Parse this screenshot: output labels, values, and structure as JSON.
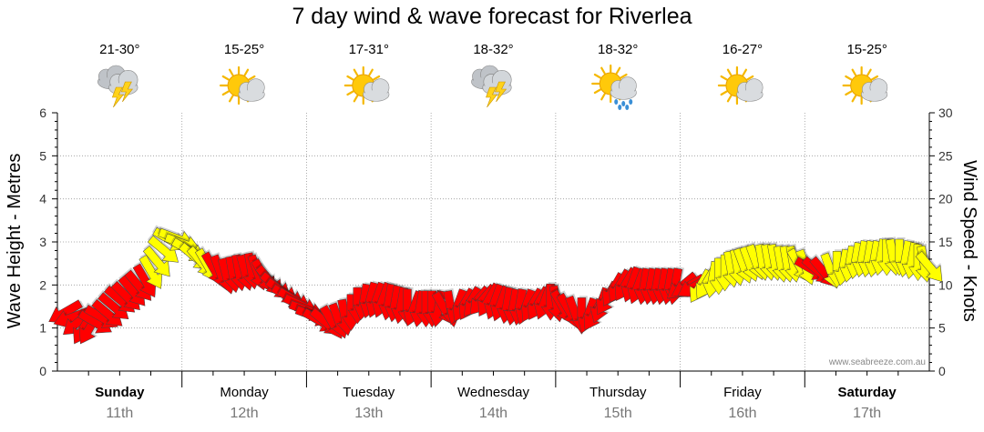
{
  "title": "7 day wind & wave forecast for Riverlea",
  "credit": "www.seabreeze.com.au",
  "colors": {
    "calm_arrow": "#ff0000",
    "strong_arrow": "#ffff00",
    "grid": "#999999",
    "axis": "#000000"
  },
  "days": [
    {
      "name": "Sunday",
      "date": "11th",
      "bold": true,
      "temp": "21-30°",
      "icon": "storm-cloud-icon"
    },
    {
      "name": "Monday",
      "date": "12th",
      "bold": false,
      "temp": "15-25°",
      "icon": "partly-cloudy-icon"
    },
    {
      "name": "Tuesday",
      "date": "13th",
      "bold": false,
      "temp": "17-31°",
      "icon": "partly-cloudy-icon"
    },
    {
      "name": "Wednesday",
      "date": "14th",
      "bold": false,
      "temp": "18-32°",
      "icon": "storm-cloud-icon"
    },
    {
      "name": "Thursday",
      "date": "15th",
      "bold": false,
      "temp": "18-32°",
      "icon": "sun-rain-icon"
    },
    {
      "name": "Friday",
      "date": "16th",
      "bold": false,
      "temp": "16-27°",
      "icon": "partly-cloudy-icon"
    },
    {
      "name": "Saturday",
      "date": "17th",
      "bold": true,
      "temp": "15-25°",
      "icon": "partly-cloudy-icon"
    }
  ],
  "chart_data": {
    "type": "line",
    "left_axis": {
      "label": "Wave Height - Metres",
      "range": [
        0,
        6
      ],
      "ticks": [
        "0",
        "1",
        "2",
        "3",
        "4",
        "5",
        "6"
      ]
    },
    "right_axis": {
      "label": "Wind Speed - Knots",
      "range": [
        0,
        30
      ],
      "ticks": [
        "0",
        "5",
        "10",
        "15",
        "20",
        "25",
        "30"
      ]
    },
    "categories": [
      "Sunday 11th",
      "Monday 12th",
      "Tuesday 13th",
      "Wednesday 14th",
      "Thursday 15th",
      "Friday 16th",
      "Saturday 17th"
    ],
    "grid": true,
    "series": [
      {
        "name": "Wind",
        "x_days": [
          0.0,
          0.05,
          0.1,
          0.15,
          0.2,
          0.25,
          0.3,
          0.35,
          0.4,
          0.45,
          0.5,
          0.55,
          0.6,
          0.65,
          0.7,
          0.75,
          0.8,
          0.85,
          0.9,
          0.95,
          1.0,
          1.05,
          1.1,
          1.15,
          1.2,
          1.25,
          1.3,
          1.35,
          1.4,
          1.45,
          1.5,
          1.55,
          1.6,
          1.65,
          1.7,
          1.75,
          1.8,
          1.85,
          1.9,
          1.95,
          2.0,
          2.05,
          2.1,
          2.15,
          2.2,
          2.25,
          2.3,
          2.35,
          2.4,
          2.45,
          2.5,
          2.55,
          2.6,
          2.65,
          2.7,
          2.75,
          2.8,
          2.85,
          2.9,
          2.95,
          3.0,
          3.05,
          3.1,
          3.15,
          3.2,
          3.25,
          3.3,
          3.35,
          3.4,
          3.45,
          3.5,
          3.55,
          3.6,
          3.65,
          3.7,
          3.75,
          3.8,
          3.85,
          3.9,
          3.95,
          4.0,
          4.05,
          4.1,
          4.15,
          4.2,
          4.25,
          4.3,
          4.35,
          4.4,
          4.45,
          4.5,
          4.55,
          4.6,
          4.65,
          4.7,
          4.75,
          4.8,
          4.85,
          4.9,
          4.95,
          5.0,
          5.05,
          5.1,
          5.15,
          5.2,
          5.25,
          5.3,
          5.35,
          5.4,
          5.45,
          5.5,
          5.55,
          5.6,
          5.65,
          5.7,
          5.75,
          5.8,
          5.85,
          5.9,
          5.95,
          6.0,
          6.05,
          6.1,
          6.15,
          6.2,
          6.25,
          6.3,
          6.35,
          6.4,
          6.45,
          6.5,
          6.55,
          6.6,
          6.65,
          6.7,
          6.75,
          6.8,
          6.85,
          6.9,
          6.95
        ],
        "knots": [
          6.8,
          6.2,
          5.6,
          5.0,
          5.0,
          5.6,
          6.2,
          6.6,
          7.4,
          8.2,
          8.6,
          9.2,
          9.8,
          10.4,
          11.4,
          12.6,
          14.0,
          15.2,
          15.4,
          14.8,
          14.0,
          13.2,
          12.6,
          12.2,
          11.8,
          11.4,
          11.0,
          11.2,
          11.4,
          11.4,
          11.6,
          11.4,
          11.0,
          10.4,
          9.8,
          9.2,
          8.6,
          8.2,
          7.6,
          7.0,
          6.4,
          5.8,
          5.6,
          5.6,
          5.8,
          6.2,
          6.8,
          7.6,
          8.0,
          8.2,
          8.2,
          8.2,
          8.0,
          7.8,
          7.6,
          7.4,
          7.2,
          7.2,
          7.2,
          7.2,
          7.2,
          7.2,
          7.2,
          7.4,
          7.6,
          7.8,
          8.0,
          8.2,
          8.2,
          8.0,
          7.8,
          7.6,
          7.4,
          7.4,
          7.4,
          7.6,
          7.8,
          8.0,
          8.0,
          7.8,
          7.4,
          7.0,
          6.6,
          6.4,
          6.4,
          6.6,
          7.6,
          8.4,
          9.4,
          9.8,
          10.0,
          10.0,
          9.8,
          9.8,
          9.8,
          9.8,
          9.8,
          9.8,
          9.8,
          9.8,
          9.8,
          9.8,
          9.8,
          10.2,
          10.6,
          11.0,
          11.4,
          11.8,
          12.0,
          12.2,
          12.4,
          12.6,
          12.6,
          12.6,
          12.6,
          12.4,
          12.4,
          12.4,
          12.2,
          12.0,
          11.8,
          11.6,
          11.4,
          11.6,
          11.8,
          12.0,
          12.4,
          12.8,
          13.0,
          13.0,
          13.0,
          13.2,
          13.2,
          13.2,
          13.2,
          13.0,
          12.8,
          12.6,
          12.4,
          12.0
        ],
        "direction_deg": [
          330,
          340,
          320,
          300,
          300,
          210,
          210,
          220,
          220,
          220,
          225,
          230,
          230,
          240,
          240,
          230,
          220,
          210,
          200,
          200,
          210,
          220,
          230,
          240,
          240,
          250,
          255,
          260,
          260,
          255,
          260,
          250,
          240,
          230,
          220,
          215,
          210,
          210,
          205,
          200,
          200,
          210,
          220,
          240,
          250,
          260,
          270,
          270,
          280,
          285,
          290,
          290,
          280,
          280,
          280,
          270,
          290,
          280,
          270,
          270,
          280,
          240,
          260,
          290,
          300,
          300,
          310,
          310,
          300,
          290,
          290,
          280,
          280,
          280,
          290,
          300,
          300,
          290,
          270,
          260,
          240,
          240,
          250,
          270,
          290,
          300,
          290,
          300,
          300,
          300,
          300,
          290,
          290,
          280,
          280,
          280,
          280,
          280,
          280,
          320,
          330,
          330,
          300,
          300,
          280,
          270,
          270,
          260,
          260,
          250,
          250,
          250,
          260,
          260,
          260,
          260,
          260,
          260,
          240,
          250,
          210,
          220,
          230,
          250,
          270,
          280,
          280,
          280,
          280,
          280,
          280,
          280,
          270,
          260,
          270,
          280,
          280,
          270,
          260,
          230
        ],
        "strong": [
          false,
          false,
          false,
          false,
          false,
          false,
          false,
          false,
          false,
          false,
          false,
          false,
          false,
          false,
          true,
          true,
          true,
          true,
          true,
          true,
          true,
          true,
          true,
          true,
          false,
          false,
          false,
          false,
          false,
          false,
          false,
          false,
          false,
          false,
          false,
          false,
          false,
          false,
          false,
          false,
          false,
          false,
          false,
          false,
          false,
          false,
          false,
          false,
          false,
          false,
          false,
          false,
          false,
          false,
          false,
          false,
          false,
          false,
          false,
          false,
          false,
          false,
          false,
          false,
          false,
          false,
          false,
          false,
          false,
          false,
          false,
          false,
          false,
          false,
          false,
          false,
          false,
          false,
          false,
          false,
          false,
          false,
          false,
          false,
          false,
          false,
          false,
          false,
          false,
          false,
          false,
          false,
          false,
          false,
          false,
          false,
          false,
          false,
          false,
          false,
          false,
          false,
          true,
          true,
          true,
          true,
          true,
          true,
          true,
          true,
          true,
          true,
          true,
          true,
          true,
          true,
          true,
          true,
          true,
          true,
          false,
          false,
          false,
          true,
          true,
          true,
          true,
          true,
          true,
          true,
          true,
          true,
          true,
          true,
          true,
          true,
          true,
          true,
          true,
          true
        ]
      }
    ]
  }
}
